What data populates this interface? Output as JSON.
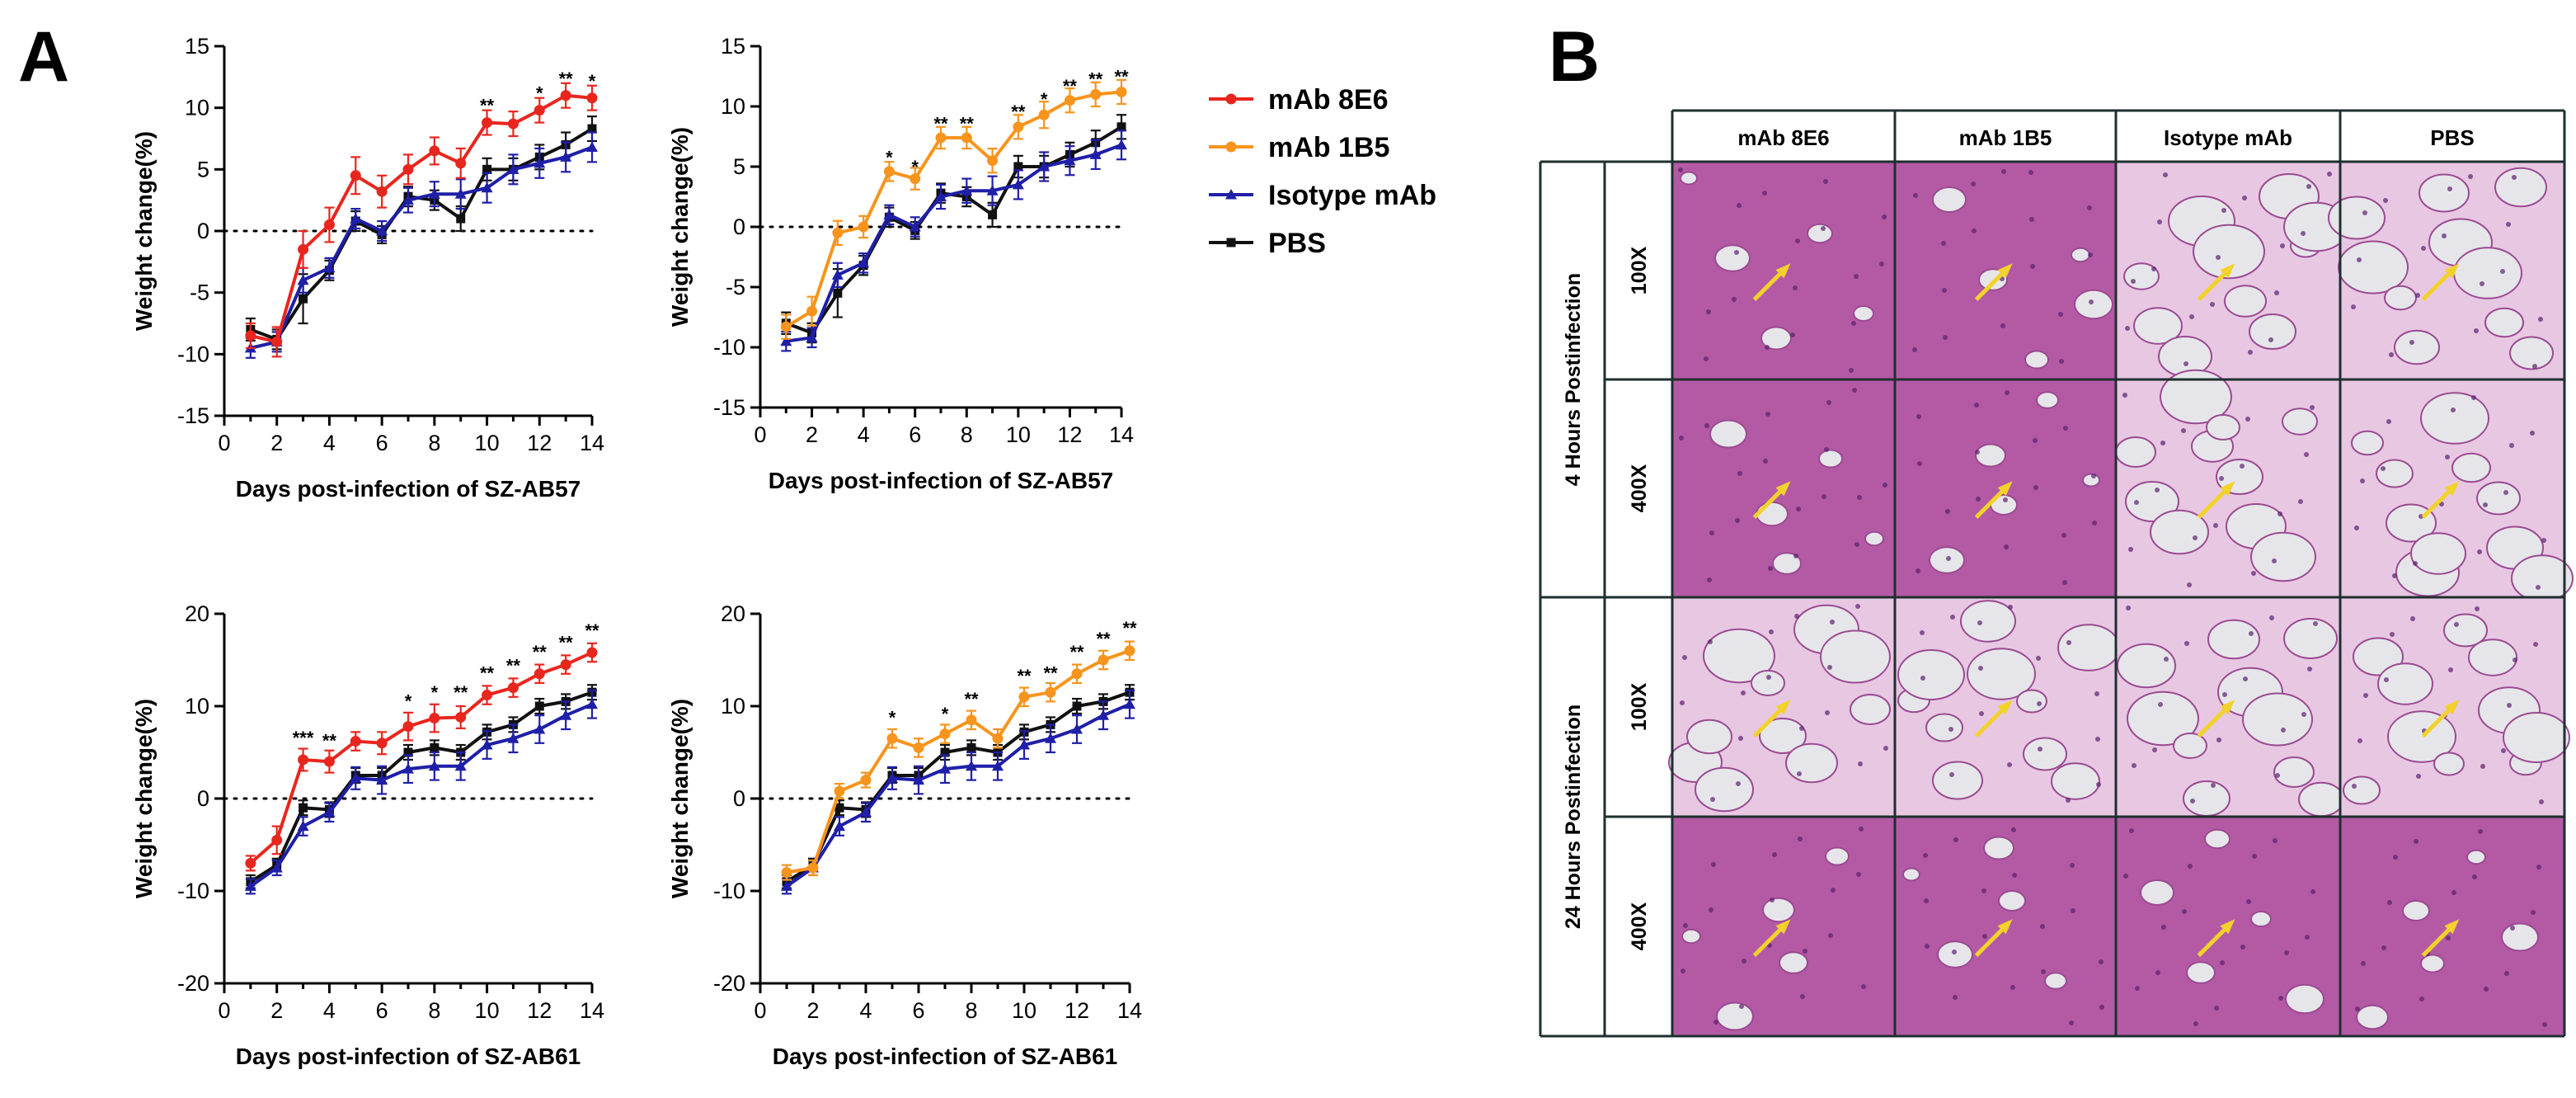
{
  "panels": {
    "a": "A",
    "b": "B"
  },
  "legend": [
    {
      "name": "mAb 8E6",
      "color": "#e8261e",
      "marker": "circle"
    },
    {
      "name": "mAb 1B5",
      "color": "#f7941d",
      "marker": "circle"
    },
    {
      "name": "Isotype mAb",
      "color": "#1f1fa8",
      "marker": "triangle"
    },
    {
      "name": "PBS",
      "color": "#111111",
      "marker": "square"
    }
  ],
  "chart_data": [
    {
      "type": "line",
      "ylabel": "Weight  change(%)",
      "xlabel": "Days post-infection of SZ-AB57",
      "xlim": [
        0,
        14
      ],
      "ylim": [
        -15,
        15
      ],
      "xticks": [
        0,
        2,
        4,
        6,
        8,
        10,
        12,
        14
      ],
      "yticks": [
        -15,
        -10,
        -5,
        0,
        5,
        10,
        15
      ],
      "reference_line": 0,
      "x": [
        1,
        2,
        3,
        4,
        5,
        6,
        7,
        8,
        9,
        10,
        11,
        12,
        13,
        14
      ],
      "series": [
        {
          "name": "mAb 8E6",
          "color": "#e8261e",
          "marker": "circle",
          "values": [
            -8.5,
            -9.0,
            -1.5,
            0.5,
            4.5,
            3.2,
            5.0,
            6.5,
            5.5,
            8.8,
            8.7,
            9.8,
            11.0,
            10.8
          ],
          "errors": [
            1.0,
            1.2,
            1.5,
            1.4,
            1.5,
            1.3,
            1.2,
            1.1,
            1.2,
            1.0,
            1.0,
            1.0,
            1.0,
            1.0
          ]
        },
        {
          "name": "Isotype mAb",
          "color": "#1f1fa8",
          "marker": "triangle",
          "values": [
            -9.5,
            -9.0,
            -4.0,
            -3.0,
            1.0,
            0.0,
            2.5,
            3.0,
            3.0,
            3.5,
            5.0,
            5.5,
            6.0,
            6.8
          ],
          "errors": [
            0.8,
            0.8,
            1.0,
            0.8,
            0.8,
            0.8,
            1.0,
            1.0,
            1.2,
            1.2,
            1.2,
            1.2,
            1.2,
            1.2
          ]
        },
        {
          "name": "PBS",
          "color": "#111111",
          "marker": "square",
          "values": [
            -8.0,
            -8.8,
            -5.5,
            -3.2,
            0.8,
            -0.3,
            2.8,
            2.5,
            1.0,
            5.0,
            5.0,
            6.0,
            7.0,
            8.3
          ],
          "errors": [
            0.9,
            0.8,
            2.0,
            0.8,
            0.8,
            0.7,
            0.8,
            0.8,
            1.0,
            0.9,
            0.9,
            1.0,
            1.0,
            1.0
          ]
        }
      ],
      "significance": [
        {
          "x": 10,
          "label": "**",
          "y": 10.2
        },
        {
          "x": 12,
          "label": "*",
          "y": 11.2
        },
        {
          "x": 13,
          "label": "**",
          "y": 12.4
        },
        {
          "x": 14,
          "label": "*",
          "y": 12.2
        }
      ]
    },
    {
      "type": "line",
      "ylabel": "Weight  change(%)",
      "xlabel": "Days post-infection of SZ-AB57",
      "xlim": [
        0,
        14
      ],
      "ylim": [
        -15,
        15
      ],
      "xticks": [
        0,
        2,
        4,
        6,
        8,
        10,
        12,
        14
      ],
      "yticks": [
        -15,
        -10,
        -5,
        0,
        5,
        10,
        15
      ],
      "reference_line": 0,
      "x": [
        1,
        2,
        3,
        4,
        5,
        6,
        7,
        8,
        9,
        10,
        11,
        12,
        13,
        14
      ],
      "series": [
        {
          "name": "mAb 1B5",
          "color": "#f7941d",
          "marker": "circle",
          "values": [
            -8.3,
            -7.0,
            -0.5,
            0.0,
            4.6,
            4.0,
            7.4,
            7.4,
            5.5,
            8.3,
            9.3,
            10.5,
            11.0,
            11.2
          ],
          "errors": [
            1.0,
            1.2,
            1.0,
            0.9,
            0.8,
            0.9,
            0.9,
            0.9,
            1.0,
            1.0,
            1.1,
            1.0,
            1.0,
            1.0
          ]
        },
        {
          "name": "Isotype mAb",
          "color": "#1f1fa8",
          "marker": "triangle",
          "values": [
            -9.5,
            -9.2,
            -4.0,
            -3.0,
            1.0,
            0.0,
            2.5,
            3.0,
            3.0,
            3.5,
            5.0,
            5.5,
            6.0,
            6.8
          ],
          "errors": [
            0.8,
            0.8,
            1.0,
            0.8,
            0.8,
            0.8,
            1.0,
            1.0,
            1.2,
            1.2,
            1.2,
            1.2,
            1.2,
            1.2
          ]
        },
        {
          "name": "PBS",
          "color": "#111111",
          "marker": "square",
          "values": [
            -8.0,
            -8.8,
            -5.5,
            -3.2,
            0.8,
            -0.3,
            2.8,
            2.5,
            1.0,
            5.0,
            5.0,
            6.0,
            7.0,
            8.3
          ],
          "errors": [
            0.9,
            0.8,
            2.0,
            0.8,
            0.8,
            0.7,
            0.8,
            0.8,
            1.0,
            0.9,
            0.9,
            1.0,
            1.0,
            1.0
          ]
        }
      ],
      "significance": [
        {
          "x": 5,
          "label": "*",
          "y": 5.8
        },
        {
          "x": 6,
          "label": "*",
          "y": 5.0
        },
        {
          "x": 7,
          "label": "**",
          "y": 8.6
        },
        {
          "x": 8,
          "label": "**",
          "y": 8.6
        },
        {
          "x": 10,
          "label": "**",
          "y": 9.6
        },
        {
          "x": 11,
          "label": "*",
          "y": 10.6
        },
        {
          "x": 12,
          "label": "**",
          "y": 11.7
        },
        {
          "x": 13,
          "label": "**",
          "y": 12.3
        },
        {
          "x": 14,
          "label": "**",
          "y": 12.5
        }
      ]
    },
    {
      "type": "line",
      "ylabel": "Weight  change(%)",
      "xlabel": "Days post-infection of SZ-AB61",
      "xlim": [
        0,
        14
      ],
      "ylim": [
        -20,
        20
      ],
      "xticks": [
        0,
        2,
        4,
        6,
        8,
        10,
        12,
        14
      ],
      "yticks": [
        -20,
        -10,
        0,
        10,
        20
      ],
      "reference_line": 0,
      "x": [
        1,
        2,
        3,
        4,
        5,
        6,
        7,
        8,
        9,
        10,
        11,
        12,
        13,
        14
      ],
      "series": [
        {
          "name": "mAb 8E6",
          "color": "#e8261e",
          "marker": "circle",
          "values": [
            -7.0,
            -4.5,
            4.2,
            4.0,
            6.2,
            6.0,
            7.8,
            8.7,
            8.8,
            11.2,
            12.0,
            13.5,
            14.5,
            15.8
          ],
          "errors": [
            0.8,
            1.5,
            1.2,
            1.2,
            1.0,
            1.2,
            1.5,
            1.5,
            1.2,
            1.0,
            1.0,
            1.0,
            1.0,
            1.0
          ]
        },
        {
          "name": "Isotype mAb",
          "color": "#1f1fa8",
          "marker": "triangle",
          "values": [
            -9.5,
            -7.5,
            -3.0,
            -1.5,
            2.2,
            2.0,
            3.2,
            3.5,
            3.5,
            5.8,
            6.5,
            7.5,
            9.0,
            10.2
          ],
          "errors": [
            0.8,
            0.8,
            1.0,
            1.0,
            1.2,
            1.5,
            1.5,
            1.5,
            1.5,
            1.5,
            1.5,
            1.5,
            1.5,
            1.5
          ]
        },
        {
          "name": "PBS",
          "color": "#111111",
          "marker": "square",
          "values": [
            -9.0,
            -7.2,
            -1.0,
            -1.2,
            2.5,
            2.5,
            5.0,
            5.5,
            5.0,
            7.2,
            8.0,
            10.0,
            10.5,
            11.5
          ],
          "errors": [
            0.7,
            0.7,
            0.8,
            0.8,
            0.8,
            0.8,
            0.8,
            0.8,
            0.8,
            0.8,
            0.8,
            0.8,
            0.8,
            0.8
          ]
        }
      ],
      "significance": [
        {
          "x": 3,
          "label": "***",
          "y": 6.6
        },
        {
          "x": 4,
          "label": "**",
          "y": 6.3
        },
        {
          "x": 7,
          "label": "*",
          "y": 10.6
        },
        {
          "x": 8,
          "label": "*",
          "y": 11.5
        },
        {
          "x": 9,
          "label": "**",
          "y": 11.5
        },
        {
          "x": 10,
          "label": "**",
          "y": 13.6
        },
        {
          "x": 11,
          "label": "**",
          "y": 14.4
        },
        {
          "x": 12,
          "label": "**",
          "y": 15.9
        },
        {
          "x": 13,
          "label": "**",
          "y": 16.9
        },
        {
          "x": 14,
          "label": "**",
          "y": 18.2
        }
      ]
    },
    {
      "type": "line",
      "ylabel": "Weight  change(%)",
      "xlabel": "Days post-infection of SZ-AB61",
      "xlim": [
        0,
        14
      ],
      "ylim": [
        -20,
        20
      ],
      "xticks": [
        0,
        2,
        4,
        6,
        8,
        10,
        12,
        14
      ],
      "yticks": [
        -20,
        -10,
        0,
        10,
        20
      ],
      "reference_line": 0,
      "x": [
        1,
        2,
        3,
        4,
        5,
        6,
        7,
        8,
        9,
        10,
        11,
        12,
        13,
        14
      ],
      "series": [
        {
          "name": "mAb 1B5",
          "color": "#f7941d",
          "marker": "circle",
          "values": [
            -8.0,
            -7.5,
            0.8,
            2.0,
            6.5,
            5.5,
            7.0,
            8.5,
            6.5,
            11.0,
            11.5,
            13.5,
            15.0,
            16.0
          ],
          "errors": [
            0.8,
            0.8,
            0.8,
            0.8,
            1.0,
            1.0,
            1.0,
            1.0,
            1.0,
            1.0,
            1.0,
            1.0,
            1.0,
            1.0
          ]
        },
        {
          "name": "Isotype mAb",
          "color": "#1f1fa8",
          "marker": "triangle",
          "values": [
            -9.5,
            -7.5,
            -3.0,
            -1.5,
            2.2,
            2.0,
            3.2,
            3.5,
            3.5,
            5.8,
            6.5,
            7.5,
            9.0,
            10.2
          ],
          "errors": [
            0.8,
            0.8,
            1.0,
            1.0,
            1.2,
            1.5,
            1.5,
            1.5,
            1.5,
            1.5,
            1.5,
            1.5,
            1.5,
            1.5
          ]
        },
        {
          "name": "PBS",
          "color": "#111111",
          "marker": "square",
          "values": [
            -9.0,
            -7.2,
            -1.0,
            -1.2,
            2.5,
            2.5,
            5.0,
            5.5,
            5.0,
            7.2,
            8.0,
            10.0,
            10.5,
            11.5
          ],
          "errors": [
            0.7,
            0.7,
            0.8,
            0.8,
            0.8,
            0.8,
            0.8,
            0.8,
            0.8,
            0.8,
            0.8,
            0.8,
            0.8,
            0.8
          ]
        }
      ],
      "significance": [
        {
          "x": 5,
          "label": "*",
          "y": 8.8
        },
        {
          "x": 7,
          "label": "*",
          "y": 9.2
        },
        {
          "x": 8,
          "label": "**",
          "y": 10.8
        },
        {
          "x": 10,
          "label": "**",
          "y": 13.3
        },
        {
          "x": 11,
          "label": "**",
          "y": 13.6
        },
        {
          "x": 12,
          "label": "**",
          "y": 15.9
        },
        {
          "x": 13,
          "label": "**",
          "y": 17.3
        },
        {
          "x": 14,
          "label": "**",
          "y": 18.5
        }
      ]
    }
  ],
  "histology": {
    "columns": [
      "mAb 8E6",
      "mAb 1B5",
      "Isotype mAb",
      "PBS"
    ],
    "groups": [
      {
        "label": "4 Hours Postinfection",
        "rows": [
          "100X",
          "400X"
        ]
      },
      {
        "label": "24 Hours Postinfection",
        "rows": [
          "100X",
          "400X"
        ]
      }
    ],
    "tile_colors": {
      "dense": "#b45aa5",
      "light": "#e8c7e3",
      "lumen": "#e6e6ea"
    }
  }
}
